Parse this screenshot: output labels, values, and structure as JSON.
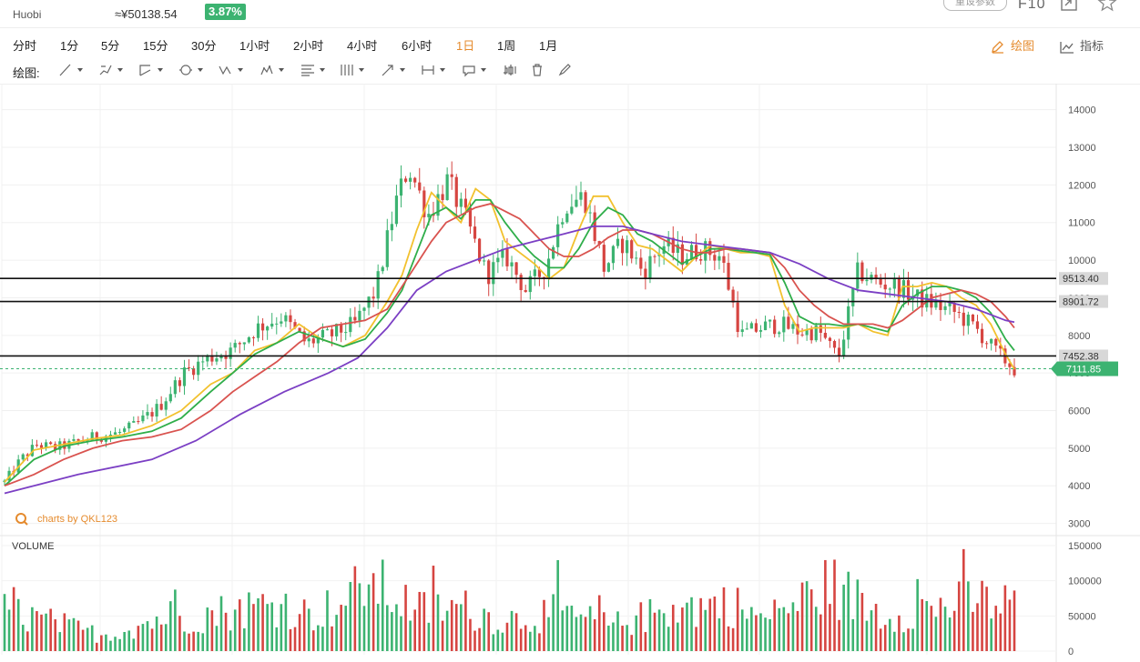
{
  "header": {
    "exchange": "Huobi",
    "price_cny": "≈¥50138.54",
    "change": "3.87%",
    "param_button": "重设参数",
    "f10": "F10"
  },
  "periods": [
    {
      "label": "分时",
      "active": false
    },
    {
      "label": "1分",
      "active": false
    },
    {
      "label": "5分",
      "active": false
    },
    {
      "label": "15分",
      "active": false
    },
    {
      "label": "30分",
      "active": false
    },
    {
      "label": "1小时",
      "active": false
    },
    {
      "label": "2小时",
      "active": false
    },
    {
      "label": "4小时",
      "active": false
    },
    {
      "label": "6小时",
      "active": false
    },
    {
      "label": "1日",
      "active": true
    },
    {
      "label": "1周",
      "active": false
    },
    {
      "label": "1月",
      "active": false
    }
  ],
  "right_tools": {
    "draw": "绘图",
    "indicator": "指标"
  },
  "drawing_toolbar": {
    "label": "绘图:",
    "tools": [
      "line-tool-icon",
      "pen-tool-icon",
      "channel-tool-icon",
      "circle-tool-icon",
      "wave-tool-icon",
      "pattern-tool-icon",
      "fibonacci-tool-icon",
      "gann-tool-icon",
      "arrow-tool-icon",
      "measure-tool-icon",
      "comment-tool-icon",
      "candle-tool-icon",
      "trash-icon",
      "brush-icon"
    ]
  },
  "colors": {
    "up": "#3cb371",
    "down": "#d64541",
    "ma_yellow": "#f2c12e",
    "ma_green": "#2fae4a",
    "ma_red": "#d9534f",
    "ma_purple": "#7b3fc4",
    "accent": "#e58b2e"
  },
  "chart_data": {
    "type": "candlestick",
    "title": "",
    "watermark": "charts by QKL123",
    "price_axis": {
      "ylim": [
        2700,
        14500
      ],
      "ticks": [
        "3000",
        "4000",
        "5000",
        "6000",
        "7000",
        "8000",
        "9000",
        "10000",
        "11000",
        "12000",
        "13000",
        "14000"
      ]
    },
    "horizontal_lines": [
      {
        "value": 9513.4,
        "label": "9513.40"
      },
      {
        "value": 8901.72,
        "label": "8901.72"
      },
      {
        "value": 7452.38,
        "label": "7452.38"
      }
    ],
    "current_price": {
      "value": 7111.85,
      "label": "7111.85"
    },
    "ma_lines": [
      {
        "color": "yellow",
        "points": [
          [
            0,
            4100
          ],
          [
            20,
            4950
          ],
          [
            40,
            5100
          ],
          [
            60,
            5250
          ],
          [
            80,
            5350
          ],
          [
            100,
            5600
          ],
          [
            120,
            6000
          ],
          [
            140,
            6700
          ],
          [
            155,
            7000
          ],
          [
            170,
            7600
          ],
          [
            185,
            7800
          ],
          [
            200,
            8300
          ],
          [
            215,
            7900
          ],
          [
            230,
            7700
          ],
          [
            245,
            8000
          ],
          [
            260,
            8900
          ],
          [
            270,
            9600
          ],
          [
            280,
            10800
          ],
          [
            290,
            11800
          ],
          [
            300,
            11400
          ],
          [
            310,
            11000
          ],
          [
            320,
            11900
          ],
          [
            330,
            11600
          ],
          [
            340,
            10500
          ],
          [
            350,
            10200
          ],
          [
            360,
            9900
          ],
          [
            370,
            9500
          ],
          [
            380,
            9800
          ],
          [
            390,
            10800
          ],
          [
            400,
            11700
          ],
          [
            410,
            11700
          ],
          [
            420,
            11000
          ],
          [
            430,
            10400
          ],
          [
            440,
            10300
          ],
          [
            450,
            10000
          ],
          [
            460,
            9700
          ],
          [
            470,
            10100
          ],
          [
            480,
            10400
          ],
          [
            490,
            10300
          ],
          [
            500,
            10200
          ],
          [
            510,
            10200
          ],
          [
            520,
            10100
          ],
          [
            530,
            8800
          ],
          [
            540,
            8100
          ],
          [
            550,
            8200
          ],
          [
            560,
            8200
          ],
          [
            570,
            8200
          ],
          [
            580,
            8300
          ],
          [
            590,
            8100
          ],
          [
            600,
            8000
          ],
          [
            610,
            9300
          ],
          [
            620,
            9300
          ],
          [
            630,
            9400
          ],
          [
            640,
            9300
          ],
          [
            650,
            9000
          ],
          [
            660,
            8800
          ],
          [
            670,
            8300
          ],
          [
            680,
            7500
          ],
          [
            686,
            7100
          ]
        ]
      },
      {
        "color": "green",
        "points": [
          [
            0,
            4000
          ],
          [
            20,
            4700
          ],
          [
            40,
            5050
          ],
          [
            60,
            5200
          ],
          [
            80,
            5300
          ],
          [
            100,
            5450
          ],
          [
            120,
            5800
          ],
          [
            140,
            6500
          ],
          [
            155,
            7000
          ],
          [
            170,
            7500
          ],
          [
            185,
            7800
          ],
          [
            200,
            8100
          ],
          [
            215,
            7900
          ],
          [
            230,
            7700
          ],
          [
            245,
            7900
          ],
          [
            260,
            8600
          ],
          [
            270,
            9200
          ],
          [
            280,
            10200
          ],
          [
            290,
            11200
          ],
          [
            300,
            11400
          ],
          [
            310,
            11100
          ],
          [
            320,
            11600
          ],
          [
            330,
            11600
          ],
          [
            340,
            11000
          ],
          [
            350,
            10500
          ],
          [
            360,
            10100
          ],
          [
            370,
            9800
          ],
          [
            380,
            9800
          ],
          [
            390,
            10300
          ],
          [
            400,
            11000
          ],
          [
            410,
            11400
          ],
          [
            420,
            11200
          ],
          [
            430,
            10700
          ],
          [
            440,
            10500
          ],
          [
            450,
            10200
          ],
          [
            460,
            9900
          ],
          [
            470,
            10100
          ],
          [
            480,
            10300
          ],
          [
            490,
            10300
          ],
          [
            500,
            10250
          ],
          [
            510,
            10200
          ],
          [
            520,
            10150
          ],
          [
            530,
            9400
          ],
          [
            540,
            8500
          ],
          [
            550,
            8300
          ],
          [
            560,
            8300
          ],
          [
            570,
            8250
          ],
          [
            580,
            8300
          ],
          [
            590,
            8200
          ],
          [
            600,
            8100
          ],
          [
            610,
            8800
          ],
          [
            620,
            9100
          ],
          [
            630,
            9300
          ],
          [
            640,
            9300
          ],
          [
            650,
            9200
          ],
          [
            660,
            9000
          ],
          [
            670,
            8600
          ],
          [
            680,
            7900
          ],
          [
            686,
            7600
          ]
        ]
      },
      {
        "color": "red",
        "points": [
          [
            0,
            4000
          ],
          [
            20,
            4300
          ],
          [
            40,
            4700
          ],
          [
            60,
            5000
          ],
          [
            80,
            5200
          ],
          [
            100,
            5300
          ],
          [
            120,
            5500
          ],
          [
            140,
            6000
          ],
          [
            155,
            6500
          ],
          [
            170,
            6900
          ],
          [
            185,
            7300
          ],
          [
            200,
            7800
          ],
          [
            215,
            8200
          ],
          [
            230,
            8300
          ],
          [
            245,
            8400
          ],
          [
            260,
            8700
          ],
          [
            270,
            9300
          ],
          [
            280,
            9900
          ],
          [
            290,
            10500
          ],
          [
            300,
            11000
          ],
          [
            310,
            11200
          ],
          [
            320,
            11400
          ],
          [
            330,
            11500
          ],
          [
            340,
            11300
          ],
          [
            350,
            11100
          ],
          [
            360,
            10700
          ],
          [
            370,
            10300
          ],
          [
            380,
            10100
          ],
          [
            390,
            10100
          ],
          [
            400,
            10300
          ],
          [
            410,
            10600
          ],
          [
            420,
            10800
          ],
          [
            430,
            10800
          ],
          [
            440,
            10700
          ],
          [
            450,
            10500
          ],
          [
            460,
            10300
          ],
          [
            470,
            10200
          ],
          [
            480,
            10200
          ],
          [
            490,
            10300
          ],
          [
            500,
            10300
          ],
          [
            510,
            10250
          ],
          [
            520,
            10200
          ],
          [
            530,
            9800
          ],
          [
            540,
            9200
          ],
          [
            550,
            8800
          ],
          [
            560,
            8500
          ],
          [
            570,
            8300
          ],
          [
            580,
            8300
          ],
          [
            590,
            8300
          ],
          [
            600,
            8200
          ],
          [
            610,
            8400
          ],
          [
            620,
            8700
          ],
          [
            630,
            9000
          ],
          [
            640,
            9100
          ],
          [
            650,
            9200
          ],
          [
            660,
            9100
          ],
          [
            670,
            8900
          ],
          [
            680,
            8500
          ],
          [
            686,
            8200
          ]
        ]
      },
      {
        "color": "purple",
        "points": [
          [
            0,
            3800
          ],
          [
            50,
            4300
          ],
          [
            100,
            4700
          ],
          [
            130,
            5200
          ],
          [
            160,
            5900
          ],
          [
            190,
            6500
          ],
          [
            220,
            7000
          ],
          [
            240,
            7400
          ],
          [
            260,
            8200
          ],
          [
            280,
            9200
          ],
          [
            300,
            9700
          ],
          [
            320,
            10000
          ],
          [
            340,
            10300
          ],
          [
            360,
            10500
          ],
          [
            380,
            10700
          ],
          [
            400,
            10900
          ],
          [
            420,
            10900
          ],
          [
            440,
            10700
          ],
          [
            460,
            10500
          ],
          [
            480,
            10400
          ],
          [
            500,
            10300
          ],
          [
            520,
            10200
          ],
          [
            540,
            9900
          ],
          [
            560,
            9500
          ],
          [
            580,
            9200
          ],
          [
            600,
            9100
          ],
          [
            620,
            9000
          ],
          [
            640,
            8900
          ],
          [
            660,
            8700
          ],
          [
            680,
            8400
          ],
          [
            686,
            8350
          ]
        ]
      }
    ],
    "candle_model": {
      "count": 220,
      "close_points": [
        [
          0,
          4100
        ],
        [
          10,
          4700
        ],
        [
          20,
          5100
        ],
        [
          30,
          5000
        ],
        [
          40,
          5100
        ],
        [
          55,
          5300
        ],
        [
          70,
          5400
        ],
        [
          80,
          5600
        ],
        [
          95,
          6100
        ],
        [
          110,
          7000
        ],
        [
          125,
          7400
        ],
        [
          140,
          7600
        ],
        [
          155,
          8200
        ],
        [
          170,
          8500
        ],
        [
          185,
          7800
        ],
        [
          200,
          8000
        ],
        [
          215,
          8300
        ],
        [
          228,
          9200
        ],
        [
          240,
          11500
        ],
        [
          248,
          12500
        ],
        [
          260,
          11200
        ],
        [
          272,
          12100
        ],
        [
          284,
          11000
        ],
        [
          296,
          9600
        ],
        [
          308,
          10100
        ],
        [
          320,
          9200
        ],
        [
          332,
          9800
        ],
        [
          344,
          11500
        ],
        [
          356,
          11700
        ],
        [
          368,
          9800
        ],
        [
          380,
          10500
        ],
        [
          392,
          9700
        ],
        [
          404,
          10400
        ],
        [
          416,
          10100
        ],
        [
          428,
          10300
        ],
        [
          440,
          10100
        ],
        [
          452,
          8000
        ],
        [
          464,
          8200
        ],
        [
          476,
          8300
        ],
        [
          488,
          8100
        ],
        [
          500,
          8100
        ],
        [
          512,
          7400
        ],
        [
          524,
          9700
        ],
        [
          536,
          9400
        ],
        [
          548,
          9300
        ],
        [
          560,
          9000
        ],
        [
          572,
          8800
        ],
        [
          584,
          8600
        ],
        [
          596,
          8200
        ],
        [
          608,
          7600
        ],
        [
          620,
          7100
        ]
      ]
    },
    "volume": {
      "title": "VOLUME",
      "ylim": [
        0,
        150000
      ],
      "ticks": [
        "0",
        "50000",
        "100000",
        "150000"
      ],
      "highlights": [
        [
          0,
          80000
        ],
        [
          36,
          30000
        ],
        [
          60,
          70000
        ],
        [
          65,
          65000
        ],
        [
          100,
          95000
        ],
        [
          110,
          70000
        ],
        [
          125,
          100000
        ],
        [
          130,
          140000
        ],
        [
          150,
          80000
        ],
        [
          165,
          85000
        ],
        [
          180,
          60000
        ],
        [
          200,
          75000
        ],
        [
          220,
          50000
        ],
        [
          240,
          80000
        ],
        [
          262,
          95000
        ],
        [
          275,
          60000
        ],
        [
          298,
          130000
        ],
        [
          318,
          70000
        ],
        [
          352,
          100000
        ],
        [
          365,
          90000
        ]
      ]
    }
  }
}
